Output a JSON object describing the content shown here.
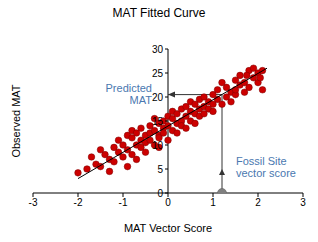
{
  "chart_data": {
    "type": "scatter",
    "title": "MAT Fitted Curve",
    "x_label": "MAT Vector Score",
    "y_label": "Observed MAT",
    "xlim": [
      -3,
      3
    ],
    "xticks": [
      -3,
      -2,
      -1,
      0,
      1,
      2,
      3
    ],
    "ylim": [
      0,
      30
    ],
    "yticks": [
      0,
      5,
      10,
      15,
      20,
      25,
      30
    ],
    "color": "#cc0000",
    "marker": "circle",
    "x": [
      -2.0,
      -1.8,
      -1.7,
      -1.6,
      -1.5,
      -1.4,
      -1.3,
      -1.3,
      -1.2,
      -1.2,
      -1.1,
      -1.1,
      -1.0,
      -1.0,
      -0.9,
      -0.9,
      -0.9,
      -0.8,
      -0.8,
      -0.8,
      -0.7,
      -0.7,
      -0.7,
      -0.6,
      -0.6,
      -0.6,
      -0.5,
      -0.5,
      -0.5,
      -0.4,
      -0.4,
      -0.4,
      -0.3,
      -0.3,
      -0.3,
      -0.2,
      -0.2,
      -0.2,
      -0.1,
      -0.1,
      -0.1,
      0.0,
      0.0,
      0.0,
      0.1,
      0.1,
      0.1,
      0.2,
      0.2,
      0.2,
      0.3,
      0.3,
      0.3,
      0.4,
      0.4,
      0.4,
      0.5,
      0.5,
      0.5,
      0.6,
      0.6,
      0.7,
      0.7,
      0.7,
      0.8,
      0.8,
      0.8,
      0.9,
      0.9,
      1.0,
      1.0,
      1.0,
      1.1,
      1.1,
      1.2,
      1.3,
      1.3,
      1.4,
      1.4,
      1.5,
      1.5,
      1.5,
      1.6,
      1.6,
      1.7,
      1.7,
      1.8,
      1.8,
      1.9,
      1.9,
      2.0,
      2.0,
      2.1,
      2.1,
      -0.2,
      0.6,
      1.2,
      -1.5,
      2.05,
      1.75
    ],
    "values": [
      4.2,
      5.0,
      7.5,
      6.0,
      5.5,
      8.0,
      7.0,
      4.5,
      9.5,
      6.5,
      8.5,
      11.0,
      7.5,
      10.0,
      12.0,
      9.0,
      5.5,
      8.0,
      11.5,
      13.0,
      10.0,
      12.5,
      7.0,
      11.0,
      9.5,
      13.5,
      12.0,
      10.5,
      8.5,
      12.5,
      11.0,
      14.0,
      13.0,
      10.0,
      15.5,
      12.0,
      14.5,
      11.5,
      13.5,
      15.0,
      12.5,
      14.0,
      16.0,
      11.0,
      13.0,
      15.5,
      17.0,
      14.5,
      16.5,
      12.5,
      15.0,
      17.5,
      14.0,
      16.0,
      18.0,
      13.5,
      17.0,
      15.0,
      19.0,
      16.5,
      18.5,
      17.5,
      19.5,
      16.0,
      18.0,
      20.0,
      16.5,
      19.0,
      17.5,
      18.5,
      20.5,
      17.0,
      19.5,
      21.5,
      18.5,
      20.0,
      22.0,
      19.0,
      21.0,
      20.5,
      23.5,
      21.5,
      22.5,
      24.5,
      21.0,
      23.0,
      25.5,
      22.0,
      24.0,
      26.0,
      23.0,
      25.0,
      21.5,
      25.5,
      9.5,
      14.5,
      23.0,
      9.0,
      24.0,
      24.5
    ],
    "fit_line": {
      "x": [
        -2.0,
        2.2
      ],
      "values": [
        3.0,
        26.0
      ],
      "color": "#000000"
    },
    "fossil_site": {
      "x": 1.2,
      "value": 0,
      "predicted": 20.5,
      "color": "#808080"
    },
    "annotations": [
      {
        "lines": [
          "Predicted",
          "MAT"
        ],
        "color": "#4a78b0"
      },
      {
        "lines": [
          "Fossil Site",
          "vector score"
        ],
        "color": "#4a78b0"
      }
    ]
  }
}
